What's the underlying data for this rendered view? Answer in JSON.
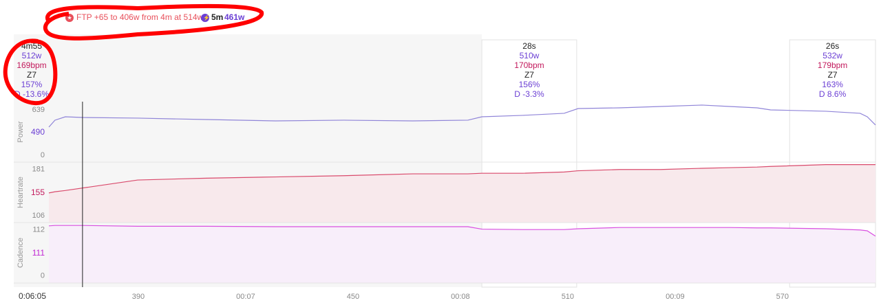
{
  "header": {
    "ftp_note": "FTP +65 to 406w from 4m at 514w",
    "best_label": "5m",
    "best_value": "461w"
  },
  "cursor_x": 374.4,
  "intervals": [
    {
      "start": 191,
      "end": 486,
      "duration": "4m55",
      "power": "512w",
      "heartrate": "169bpm",
      "zone": "Z7",
      "percent": "157%",
      "delta": "D -13.6%"
    },
    {
      "start": 486,
      "end": 512.5,
      "duration": "28s",
      "power": "510w",
      "heartrate": "170bpm",
      "zone": "Z7",
      "percent": "156%",
      "delta": "D -3.3%"
    },
    {
      "start": 572,
      "end": 596,
      "duration": "26s",
      "power": "532w",
      "heartrate": "179bpm",
      "zone": "Z7",
      "percent": "163%",
      "delta": "D 8.6%"
    }
  ],
  "chart_data": [
    {
      "type": "line",
      "y_label": "Power",
      "color": "#8f84d8",
      "avg": 490,
      "avg_color": "#6b3fd4",
      "xlim": [
        365,
        596
      ],
      "ylim": [
        -97,
        755
      ],
      "yticks": [
        0,
        639
      ],
      "x": [
        365,
        366.7,
        369.6,
        374.4,
        389.8,
        409,
        428.3,
        447.5,
        466.7,
        482.1,
        486,
        497.5,
        509,
        512.9,
        524.4,
        536,
        547.5,
        555.2,
        562.9,
        566.7,
        582.1,
        591.7,
        593.7,
        596
      ],
      "values": [
        397,
        494,
        542,
        532,
        523,
        503,
        484,
        494,
        484,
        494,
        542,
        562,
        591,
        658,
        668,
        687,
        707,
        687,
        668,
        639,
        620,
        591,
        542,
        426
      ]
    },
    {
      "type": "area",
      "y_label": "Heartrate",
      "color": "#d9496b",
      "fill": "#f8e9ec",
      "avg": 155,
      "avg_color": "#c2185b",
      "xlim": [
        365,
        596
      ],
      "ylim": [
        95,
        193
      ],
      "yticks": [
        106,
        181
      ],
      "x": [
        365,
        366.7,
        369.6,
        374.4,
        389.8,
        409,
        428.3,
        447.5,
        466.7,
        482.1,
        486,
        497.5,
        509,
        512.9,
        524.4,
        536,
        547.5,
        555.2,
        562.9,
        566.7,
        582.1,
        591.7,
        593.7,
        596
      ],
      "values": [
        143,
        145,
        147,
        151,
        164,
        167,
        169,
        171,
        174,
        174,
        175,
        175,
        177,
        179,
        181,
        181,
        183,
        184,
        185,
        186,
        189,
        189,
        189,
        189
      ]
    },
    {
      "type": "area",
      "y_label": "Cadence",
      "color": "#d94fe0",
      "fill": "#f8eefa",
      "avg": 111,
      "avg_color": "#c026d3",
      "xlim": [
        365,
        596
      ],
      "ylim": [
        -17,
        130
      ],
      "yticks": [
        0,
        112
      ],
      "x": [
        365,
        366.7,
        369.6,
        374.4,
        389.8,
        409,
        428.3,
        447.5,
        466.7,
        482.1,
        486,
        497.5,
        509,
        512.9,
        524.4,
        536,
        547.5,
        555.2,
        562.9,
        566.7,
        582.1,
        591.7,
        593.7,
        596
      ],
      "values": [
        122,
        123,
        123,
        123,
        121,
        121,
        120,
        120,
        120,
        120,
        114,
        113,
        113,
        115,
        118,
        118,
        118,
        118,
        117,
        117,
        115,
        112,
        110,
        97
      ],
      "xticks": [
        {
          "value": 365,
          "label": "0:06:05"
        },
        390,
        {
          "value": 420,
          "label": "00:07"
        },
        450,
        {
          "value": 480,
          "label": "00:08"
        },
        510,
        {
          "value": 540,
          "label": "00:09"
        },
        570
      ]
    }
  ]
}
